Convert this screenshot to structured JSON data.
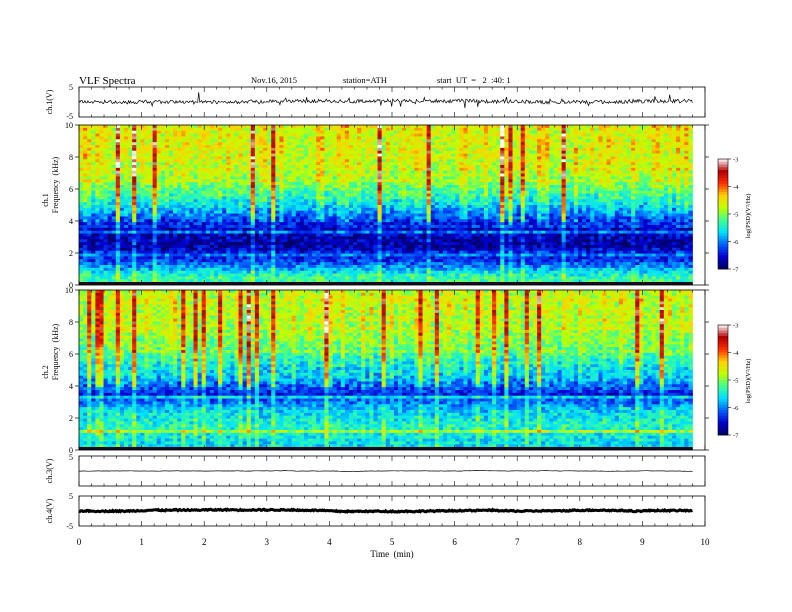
{
  "header": {
    "title": "VLF Spectra",
    "date": "Nov.16, 2015",
    "station": "station=ATH",
    "start": "start  UT  =   2  :40: 1"
  },
  "colors": {
    "colormap": [
      "#000060",
      "#0000d0",
      "#0060ff",
      "#00e0ff",
      "#40ff90",
      "#c0ff00",
      "#ffd000",
      "#ff3000",
      "#b00000",
      "#ffffff"
    ]
  },
  "chart_data": [
    {
      "type": "line",
      "panel": "ch1-waveform",
      "ylabel": "ch.1(V)",
      "ylim": [
        -5,
        5
      ],
      "yticks": [
        "5",
        "-5"
      ],
      "description_values": {
        "mean": 0,
        "noise_amplitude": 0.6,
        "spike_amplitude": 3
      },
      "xlim": [
        0,
        10
      ]
    },
    {
      "type": "heatmap",
      "panel": "ch1-spectrogram",
      "ylabel_line1": "ch.1",
      "ylabel_line2": "Frequency  (kHz)",
      "ylim": [
        0,
        10
      ],
      "yticks": [
        "0",
        "2",
        "4",
        "6",
        "8",
        "10"
      ],
      "xlim": [
        0,
        9.8
      ],
      "colorbar": {
        "label": "log(PSD)(V²/Hz)",
        "range": [
          -7,
          -3
        ],
        "ticks": [
          "-3",
          "-4",
          "-5",
          "-6",
          "-7"
        ]
      },
      "level_profile_by_khz": [
        {
          "f": 0.5,
          "level": -5.3
        },
        {
          "f": 1.5,
          "level": -6.3
        },
        {
          "f": 2.5,
          "level": -6.7
        },
        {
          "f": 3.5,
          "level": -6.6
        },
        {
          "f": 4.5,
          "level": -5.9
        },
        {
          "f": 5.5,
          "level": -5.3
        },
        {
          "f": 6.5,
          "level": -4.9
        },
        {
          "f": 7.5,
          "level": -4.7
        },
        {
          "f": 8.5,
          "level": -4.6
        },
        {
          "f": 9.5,
          "level": -4.6
        }
      ]
    },
    {
      "type": "heatmap",
      "panel": "ch2-spectrogram",
      "ylabel_line1": "ch.2",
      "ylabel_line2": "Frequency  (kHz)",
      "ylim": [
        0,
        10
      ],
      "yticks": [
        "0",
        "2",
        "4",
        "6",
        "8",
        "10"
      ],
      "xlim": [
        0,
        9.8
      ],
      "colorbar": {
        "label": "log(PSD)(V²/Hz)",
        "range": [
          -7,
          -3
        ],
        "ticks": [
          "-3",
          "-4",
          "-5",
          "-6",
          "-7"
        ]
      },
      "level_profile_by_khz": [
        {
          "f": 0.5,
          "level": -5.6
        },
        {
          "f": 1.5,
          "level": -5.4
        },
        {
          "f": 2.5,
          "level": -5.7
        },
        {
          "f": 3.5,
          "level": -6.4
        },
        {
          "f": 4.5,
          "level": -5.7
        },
        {
          "f": 5.5,
          "level": -5.4
        },
        {
          "f": 6.5,
          "level": -5.0
        },
        {
          "f": 7.5,
          "level": -4.8
        },
        {
          "f": 8.5,
          "level": -4.7
        },
        {
          "f": 9.5,
          "level": -4.7
        }
      ]
    },
    {
      "type": "line",
      "panel": "ch3-waveform",
      "ylabel": "ch.3(V)",
      "ylim": [
        -5,
        5
      ],
      "yticks": [
        "5"
      ],
      "description_values": {
        "mean": 0,
        "noise_amplitude": 0.05
      },
      "xlim": [
        0,
        10
      ]
    },
    {
      "type": "line",
      "panel": "ch4-waveform",
      "ylabel": "ch.4(V)",
      "ylim": [
        -5,
        5
      ],
      "yticks": [
        "5",
        "-5"
      ],
      "description_values": {
        "mean": 0,
        "noise_amplitude": 0.2
      },
      "xlim": [
        0,
        10
      ]
    }
  ],
  "xaxis": {
    "label": "Time  (min)",
    "ticks": [
      "0",
      "1",
      "2",
      "3",
      "4",
      "5",
      "6",
      "7",
      "8",
      "9",
      "10"
    ]
  }
}
